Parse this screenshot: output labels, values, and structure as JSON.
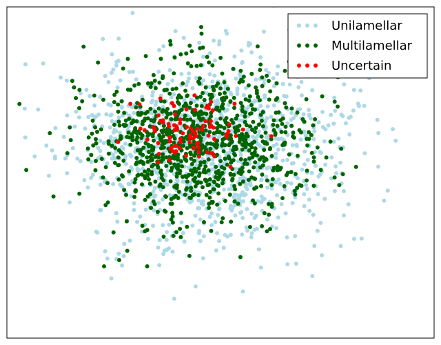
{
  "chart_data": {
    "type": "scatter",
    "title": "",
    "xlabel": "",
    "ylabel": "",
    "xlim": [
      -6,
      6
    ],
    "ylim": [
      -6,
      6
    ],
    "grid": false,
    "axis_ticks": false,
    "legend_position": "top-right",
    "series": [
      {
        "name": "Unilamellar",
        "color": "#add8e6",
        "marker": "circle",
        "distribution": "gaussian-cloud",
        "count": 1100,
        "center": [
          -0.4,
          1.0
        ],
        "spread": [
          1.9,
          1.7
        ],
        "seed": 11
      },
      {
        "name": "Multilamellar",
        "color": "#006400",
        "marker": "circle",
        "distribution": "gaussian-cloud",
        "count": 950,
        "center": [
          -0.6,
          1.1
        ],
        "spread": [
          1.5,
          1.35
        ],
        "seed": 29
      },
      {
        "name": "Uncertain",
        "color": "#ff0000",
        "marker": "circle",
        "distribution": "gaussian-cloud",
        "count": 90,
        "center": [
          -0.8,
          1.4
        ],
        "spread": [
          0.7,
          0.6
        ],
        "seed": 47
      }
    ]
  }
}
